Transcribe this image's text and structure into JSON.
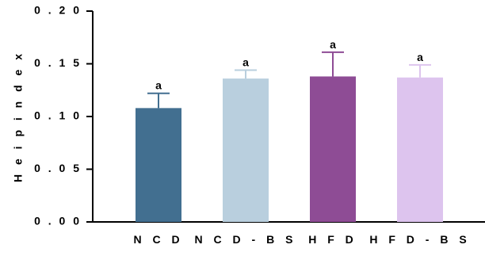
{
  "chart_data": {
    "type": "bar",
    "categories": [
      "N C D",
      "N C D - B S",
      "H F D",
      "H F D - B S"
    ],
    "values": [
      0.108,
      0.136,
      0.138,
      0.137
    ],
    "errors": [
      0.014,
      0.008,
      0.023,
      0.012
    ],
    "annotations": [
      "a",
      "a",
      "a",
      "a"
    ],
    "colors": [
      "#426f90",
      "#b9cfde",
      "#8e4c95",
      "#ddc4ee"
    ],
    "ylabel": "H e i p  i n d e x",
    "xlabel": "",
    "title": "",
    "ylim": [
      0,
      0.2
    ],
    "yticks": [
      0.0,
      0.05,
      0.1,
      0.15,
      0.2
    ],
    "ytick_labels": [
      "0 . 0 0",
      "0 . 0 5",
      "0 . 1 0",
      "0 . 1 5",
      "0 . 2 0"
    ],
    "grid": false,
    "legend": "none"
  }
}
